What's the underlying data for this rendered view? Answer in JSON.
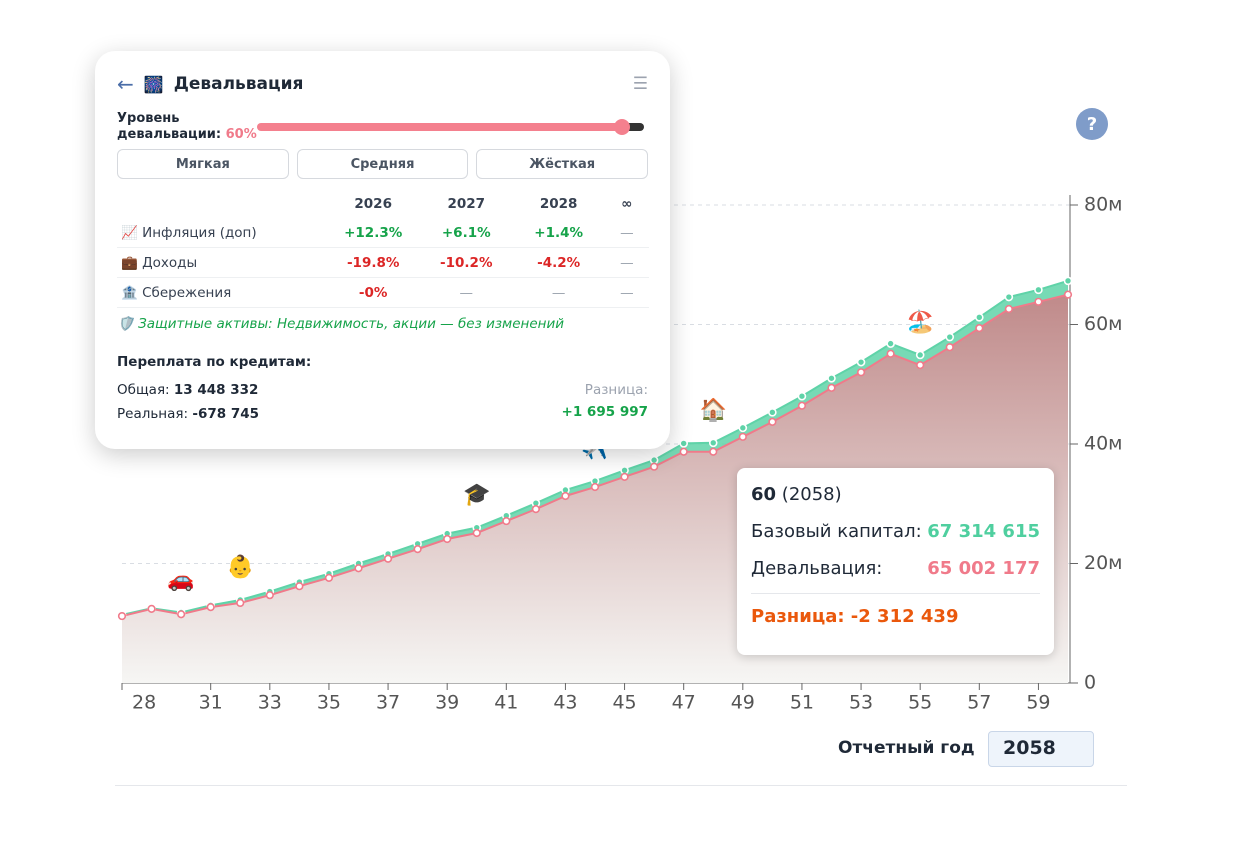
{
  "chart_data": {
    "type": "line",
    "x": [
      28,
      29,
      30,
      31,
      32,
      33,
      34,
      35,
      36,
      37,
      38,
      39,
      40,
      41,
      42,
      43,
      44,
      45,
      46,
      47,
      48,
      49,
      50,
      51,
      52,
      53,
      54,
      55,
      56,
      57,
      58,
      59,
      60
    ],
    "series": [
      {
        "color": "#5fd3a8",
        "values": [
          11400000,
          12500000,
          11800000,
          13000000,
          13900000,
          15300000,
          16900000,
          18300000,
          20000000,
          21600000,
          23300000,
          25000000,
          26000000,
          28000000,
          30100000,
          32300000,
          33800000,
          35600000,
          37300000,
          40100000,
          40200000,
          42700000,
          45300000,
          48000000,
          51000000,
          53700000,
          56800000,
          54900000,
          57900000,
          61200000,
          64600000,
          65800000,
          67314615
        ]
      },
      {
        "color": "#f07a8a",
        "values": [
          11200000,
          12400000,
          11500000,
          12700000,
          13400000,
          14700000,
          16200000,
          17600000,
          19200000,
          20800000,
          22400000,
          24100000,
          25100000,
          27100000,
          29100000,
          31300000,
          32800000,
          34500000,
          36200000,
          38700000,
          38700000,
          41200000,
          43700000,
          46400000,
          49400000,
          52000000,
          55100000,
          53200000,
          56200000,
          59400000,
          62600000,
          63800000,
          65002177
        ]
      }
    ],
    "annotations": [
      null,
      null,
      "🚗",
      null,
      "👶",
      null,
      null,
      null,
      null,
      null,
      null,
      null,
      "🎓",
      null,
      null,
      null,
      "✈️",
      null,
      null,
      null,
      "🏠",
      null,
      null,
      null,
      null,
      null,
      null,
      "🏖️",
      null,
      null,
      null,
      null,
      null
    ],
    "xlim": [
      28,
      60
    ],
    "xticks": [
      28,
      31,
      33,
      35,
      37,
      39,
      41,
      43,
      45,
      47,
      49,
      51,
      53,
      55,
      57,
      59
    ],
    "ylim": [
      0,
      80000000
    ],
    "yticks": [
      {
        "value": 0,
        "label": "0"
      },
      {
        "value": 20000000,
        "label": "20м"
      },
      {
        "value": 40000000,
        "label": "40м"
      },
      {
        "value": 60000000,
        "label": "60м"
      },
      {
        "value": 80000000,
        "label": "80м"
      }
    ],
    "grid": true
  },
  "tooltip": {
    "title": "60",
    "year": "(2058)",
    "base_label": "Базовый капитал:",
    "base_value": "67 314 615",
    "dev_label": "Девальвация:",
    "dev_value": "65 002 177",
    "diff": "Разница: -2 312 439"
  },
  "help": "?",
  "report": {
    "label": "Отчетный год",
    "value": "2058"
  },
  "panel": {
    "back": "←",
    "icon": "🎆",
    "title": "Девальвация",
    "menu": "☰",
    "slider_label": "Уровень девальвации:",
    "slider_value": "60%",
    "buttons": [
      "Мягкая",
      "Средняя",
      "Жёсткая"
    ],
    "columns": [
      "2026",
      "2027",
      "2028",
      "∞"
    ],
    "rows": [
      {
        "icon": "📈",
        "label": "Инфляция (доп)",
        "cells": [
          "+12.3%",
          "+6.1%",
          "+1.4%",
          "—"
        ]
      },
      {
        "icon": "💼",
        "label": "Доходы",
        "cells": [
          "-19.8%",
          "-10.2%",
          "-4.2%",
          "—"
        ]
      },
      {
        "icon": "🏦",
        "label": "Сбережения",
        "cells": [
          "-0%",
          "—",
          "—",
          "—"
        ]
      }
    ],
    "note_icon": "🛡️",
    "note": "Защитные активы: Недвижимость, акции — без изменений",
    "credit_title": "Переплата по кредитам:",
    "total_label": "Общая:",
    "total_value": "13 448 332",
    "real_label": "Реальная:",
    "real_value": "-678 745",
    "diff_label": "Разница:",
    "diff_value": "+1 695 997"
  }
}
